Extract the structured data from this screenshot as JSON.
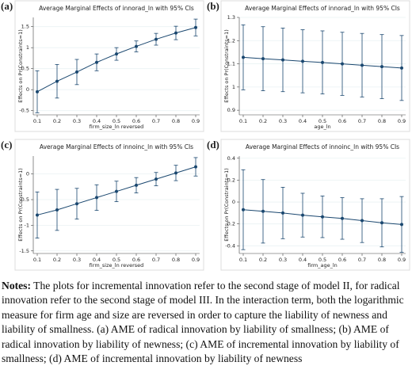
{
  "chart_data": [
    {
      "type": "line",
      "panel": "(a)",
      "title": "Average Marginal Effects of innorad_ln with 95% CIs",
      "xlabel": "firm_size_ln reversed",
      "ylabel": "Effects on Pr(Constraints=1)",
      "x": [
        0.1,
        0.2,
        0.3,
        0.4,
        0.5,
        0.6,
        0.7,
        0.8,
        0.9
      ],
      "values": [
        -0.05,
        0.2,
        0.42,
        0.65,
        0.85,
        1.03,
        1.2,
        1.35,
        1.48
      ],
      "errors": [
        0.5,
        0.4,
        0.3,
        0.2,
        0.15,
        0.13,
        0.14,
        0.16,
        0.2
      ],
      "color": "#1a476f",
      "xlim": [
        0.08,
        0.92
      ],
      "xticks": [
        0.1,
        0.2,
        0.3,
        0.4,
        0.5,
        0.6,
        0.7,
        0.8,
        0.9
      ],
      "ylim": [
        -0.6,
        1.72
      ],
      "yticks": [
        -0.5,
        0,
        0.5,
        1,
        1.5
      ],
      "grid": true
    },
    {
      "type": "line",
      "panel": "(b)",
      "title": "Average Marginal Effects of innorad_ln with 95% CIs",
      "xlabel": "age_ln",
      "ylabel": "Effects on Pr(Constraints=1)",
      "x": [
        0.1,
        0.2,
        0.3,
        0.4,
        0.5,
        0.6,
        0.7,
        0.8,
        0.9
      ],
      "values": [
        1.128,
        1.122,
        1.117,
        1.111,
        1.106,
        1.1,
        1.094,
        1.088,
        1.082
      ],
      "errors": [
        0.14,
        0.138,
        0.137,
        0.136,
        0.136,
        0.136,
        0.137,
        0.138,
        0.14
      ],
      "color": "#1a476f",
      "xlim": [
        0.08,
        0.92
      ],
      "xticks": [
        0.1,
        0.2,
        0.3,
        0.4,
        0.5,
        0.6,
        0.7,
        0.8,
        0.9
      ],
      "ylim": [
        0.88,
        1.3
      ],
      "yticks": [
        0.9,
        1,
        1.1,
        1.2,
        1.3
      ],
      "grid": true
    },
    {
      "type": "line",
      "panel": "(c)",
      "title": "Average Marginal Effects of innoinc_ln with 95% CIs",
      "xlabel": "firm_size_ln reversed",
      "ylabel": "Effects on Pr(Constraints=1)",
      "x": [
        0.1,
        0.2,
        0.3,
        0.4,
        0.5,
        0.6,
        0.7,
        0.8,
        0.9
      ],
      "values": [
        -0.8,
        -0.7,
        -0.58,
        -0.46,
        -0.34,
        -0.22,
        -0.1,
        0.02,
        0.14
      ],
      "errors": [
        0.45,
        0.4,
        0.3,
        0.25,
        0.2,
        0.15,
        0.13,
        0.15,
        0.18
      ],
      "color": "#1a476f",
      "xlim": [
        0.08,
        0.92
      ],
      "xticks": [
        0.1,
        0.2,
        0.3,
        0.4,
        0.5,
        0.6,
        0.7,
        0.8,
        0.9
      ],
      "ylim": [
        -1.55,
        0.35
      ],
      "yticks": [
        -1.5,
        -1,
        -0.5,
        0
      ],
      "grid": true
    },
    {
      "type": "line",
      "panel": "(d)",
      "title": "Average Marginal Effects of innoinc_ln with 95% CIs",
      "xlabel": "firm_age_ln",
      "ylabel": "Effects on Pr(Constraints=1)",
      "x": [
        0.1,
        0.2,
        0.3,
        0.4,
        0.5,
        0.6,
        0.7,
        0.8,
        0.9
      ],
      "values": [
        -0.07,
        -0.085,
        -0.1,
        -0.12,
        -0.135,
        -0.15,
        -0.17,
        -0.19,
        -0.205
      ],
      "errors": [
        0.365,
        0.29,
        0.235,
        0.2,
        0.19,
        0.19,
        0.2,
        0.22,
        0.255
      ],
      "color": "#1a476f",
      "xlim": [
        0.08,
        0.92
      ],
      "xticks": [
        0.1,
        0.2,
        0.3,
        0.4,
        0.5,
        0.6,
        0.7,
        0.8,
        0.9
      ],
      "ylim": [
        -0.47,
        0.42
      ],
      "yticks": [
        -0.4,
        -0.2,
        0,
        0.2,
        0.4
      ],
      "grid": true
    }
  ],
  "notes": {
    "label": "Notes:",
    "text": "The plots for incremental innovation refer to the second stage of model II, for radical innovation refer to the second stage of model III. In the interaction term, both the logarithmic measure for firm age and size are reversed in order to capture the liability of newness and liability of smallness. (a) AME of radical innovation by liability of smallness; (b) AME of radical innovation by liability of newness; (c) AME of incremental innovation by liability of smallness; (d) AME of incremental innovation by liability of newness"
  }
}
